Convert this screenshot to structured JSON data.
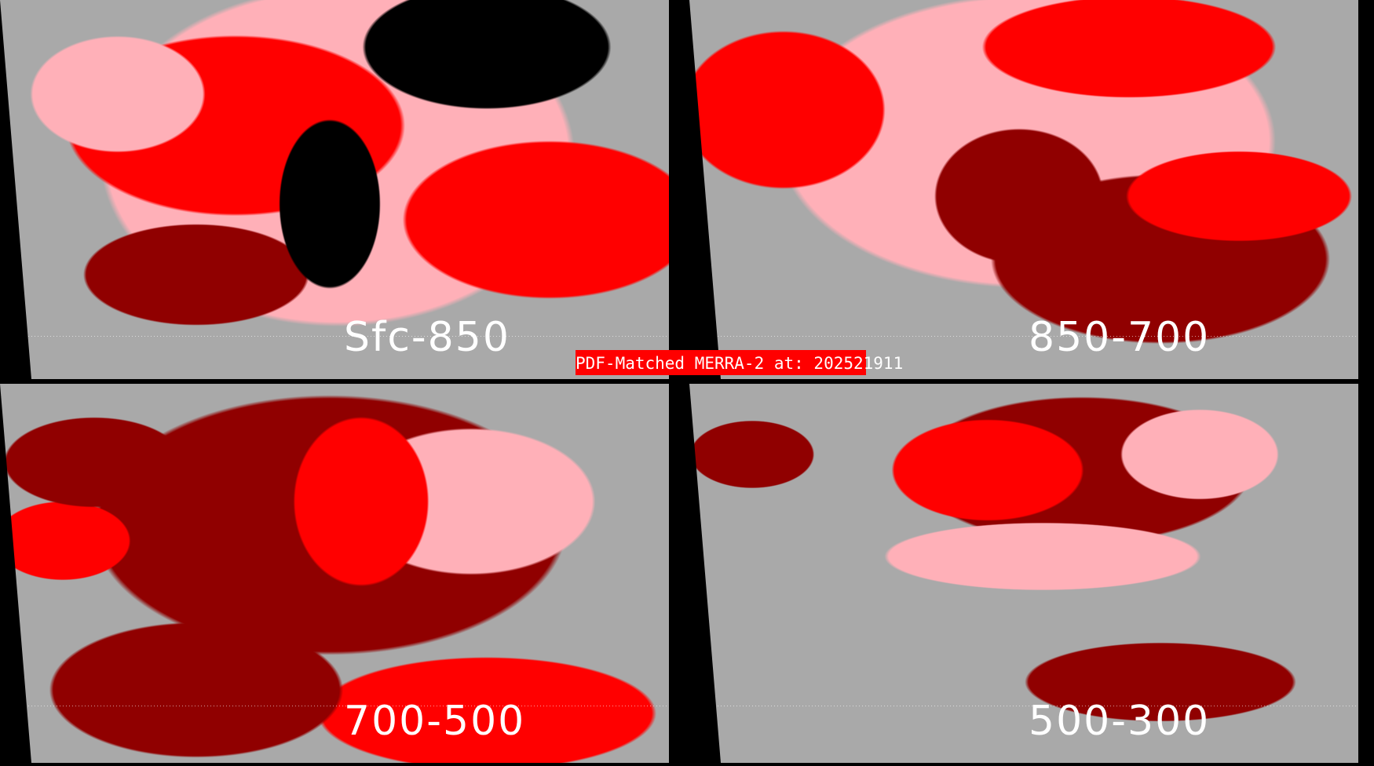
{
  "title": "PDF-Matched MERRA-2 at: 202521911",
  "colors": {
    "bright_red": "#ff0000",
    "pink": "#ffb0b8",
    "dark_red": "#900000",
    "gray": "#a9a9a9",
    "background": "#000000",
    "coastlines": "#ffffff"
  },
  "panels": [
    {
      "label": "Sfc-850"
    },
    {
      "label": "850-700"
    },
    {
      "label": "700-500"
    },
    {
      "label": "500-300"
    }
  ]
}
